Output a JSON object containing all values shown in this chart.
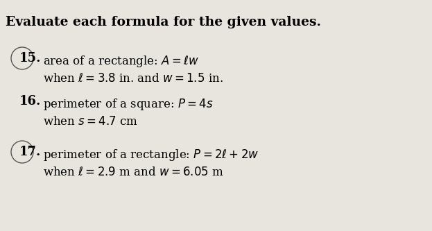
{
  "background_color": "#e8e5df",
  "title": "Evaluate each formula for the given values.",
  "items": [
    {
      "number": "15.",
      "circle": true,
      "line1_plain": "area of a rectangle: ",
      "line1_math": "$A = \\ell w$",
      "line2_plain": "when ",
      "line2_math": "$\\ell = 3.8$ in. and $w = 1.5$ in."
    },
    {
      "number": "16.",
      "circle": false,
      "line1_plain": "perimeter of a square: ",
      "line1_math": "$P = 4s$",
      "line2_plain": "when ",
      "line2_math": "$s = 4.7$ cm"
    },
    {
      "number": "17.",
      "circle": true,
      "line1_plain": "perimeter of a rectangle: ",
      "line1_math": "$P = 2\\ell + 2w$",
      "line2_plain": "when ",
      "line2_math": "$\\ell = 2.9$ m and $w = 6.05$ m"
    }
  ],
  "title_fontsize": 13.5,
  "text_fontsize": 12,
  "number_fontsize": 13
}
